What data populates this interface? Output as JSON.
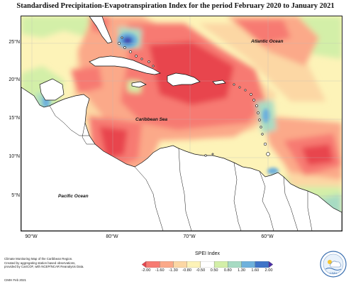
{
  "title": "Standardised Precipitation-Evapotranspiration Index for the period February 2020 to January 2021",
  "map": {
    "lat_labels": [
      "25°N",
      "20°N",
      "15°N",
      "10°N",
      "5°N"
    ],
    "lon_labels": [
      "90°W",
      "80°W",
      "70°W",
      "60°W"
    ],
    "ocean_labels": {
      "atlantic": "Atlantic Ocean",
      "caribbean": "Caribbean Sea",
      "pacific": "Pacific Ocean"
    }
  },
  "legend": {
    "title": "SPEI Index",
    "ticks": [
      "-2.00",
      "-1.60",
      "-1.30",
      "-0.80",
      "-0.50",
      "0.50",
      "0.80",
      "1.30",
      "1.60",
      "2.00"
    ],
    "colors": [
      "#e8454e",
      "#f77a72",
      "#fba989",
      "#fcd7a4",
      "#fdf3b8",
      "#ffffff",
      "#d3efa8",
      "#a7dbc3",
      "#6eb1dc",
      "#3f74c8",
      "#4b2fa6"
    ]
  },
  "credits": {
    "lines": [
      "Climate Monitoring Map of the Caribbean Region.",
      "Created by aggregating station based observations,",
      "provided by CariCOF, with NCEP/NCAR Reanalysis Data."
    ],
    "date": "CIMH Feb 2021"
  },
  "colors": {
    "land_fill": "#ffffff",
    "border_line": "#111111",
    "background_field": "#fdf3b8"
  }
}
